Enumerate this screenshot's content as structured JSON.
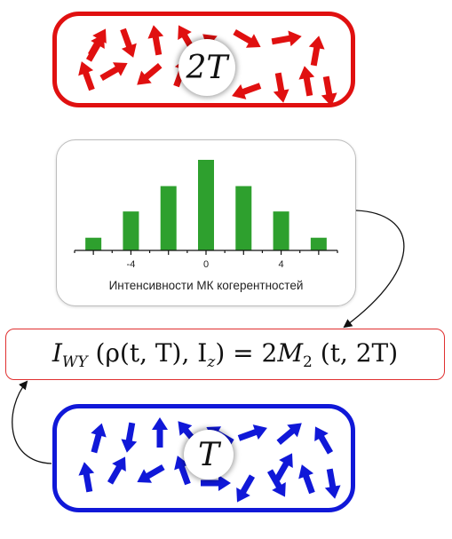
{
  "top_panel": {
    "label": "2T",
    "arrow_color": "#e01010"
  },
  "bottom_panel": {
    "label": "T",
    "arrow_color": "#1018d8"
  },
  "formula": {
    "lhs_symbol": "I",
    "lhs_subscript": "WY",
    "args": "(ρ(t, T), I",
    "args_subscript": "z",
    "args_close": ")",
    "equals": "=",
    "rhs_coeff": "2",
    "rhs_symbol": "M",
    "rhs_subscript": "2",
    "rhs_args": "(t, 2T)"
  },
  "chart_data": {
    "type": "bar",
    "title": "",
    "xlabel": "Интенсивности МК когерентностей",
    "ylabel": "",
    "x": [
      -6,
      -4,
      -2,
      0,
      2,
      4,
      6
    ],
    "values": [
      0.14,
      0.43,
      0.71,
      1.0,
      0.71,
      0.43,
      0.14
    ],
    "tick_labels": [
      {
        "x": -4,
        "label": "-4"
      },
      {
        "x": 0,
        "label": "0"
      },
      {
        "x": 4,
        "label": "4"
      }
    ],
    "xlim": [
      -7,
      7
    ],
    "ylim": [
      0,
      1
    ],
    "bar_color": "#2ea02e"
  }
}
